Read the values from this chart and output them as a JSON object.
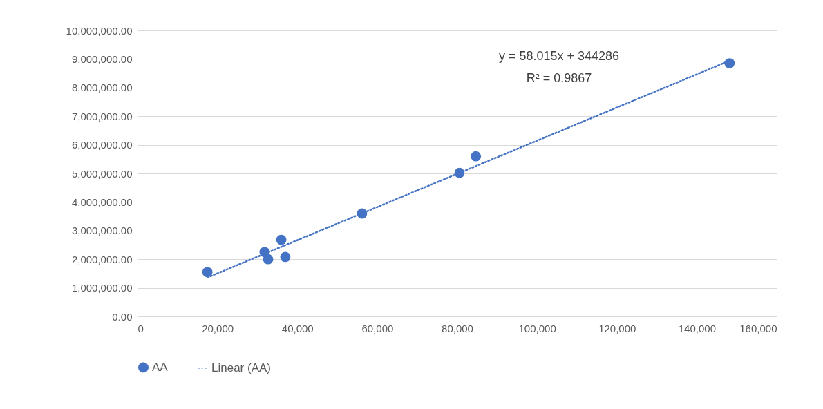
{
  "chart_data": {
    "type": "scatter",
    "annotations": [
      "y = 58.015x + 344286",
      "R² = 0.9867"
    ],
    "series": [
      {
        "name": "AA",
        "color": "#4472c4",
        "marker": "circle",
        "x": [
          17500,
          31800,
          32700,
          36000,
          37000,
          56200,
          80600,
          84700,
          148200
        ],
        "values": [
          1550000,
          2250000,
          2000000,
          2680000,
          2080000,
          3600000,
          5020000,
          5600000,
          8850000
        ]
      },
      {
        "name": "Linear (AA)",
        "type": "line",
        "color": "#4472c4",
        "line_style": "dotted",
        "x": [
          17500,
          148200
        ],
        "values": [
          1360000,
          8940000
        ]
      }
    ],
    "xlim": [
      0,
      160000
    ],
    "xticks": [
      0,
      {
        "value": 20000,
        "label": "20,000"
      },
      {
        "value": 40000,
        "label": "40,000"
      },
      {
        "value": 60000,
        "label": "60,000"
      },
      {
        "value": 80000,
        "label": "80,000"
      },
      {
        "value": 100000,
        "label": "100,000"
      },
      {
        "value": 120000,
        "label": "120,000"
      },
      {
        "value": 140000,
        "label": "140,000"
      },
      {
        "value": 160000,
        "label": "160,000"
      }
    ],
    "ylim": [
      0,
      10000000
    ],
    "yticks": [
      {
        "value": 0,
        "label": "0.00"
      },
      {
        "value": 1000000,
        "label": "1,000,000.00"
      },
      {
        "value": 2000000,
        "label": "2,000,000.00"
      },
      {
        "value": 3000000,
        "label": "3,000,000.00"
      },
      {
        "value": 4000000,
        "label": "4,000,000.00"
      },
      {
        "value": 5000000,
        "label": "5,000,000.00"
      },
      {
        "value": 6000000,
        "label": "6,000,000.00"
      },
      {
        "value": 7000000,
        "label": "7,000,000.00"
      },
      {
        "value": 8000000,
        "label": "8,000,000.00"
      },
      {
        "value": 9000000,
        "label": "9,000,000.00"
      },
      {
        "value": 10000000,
        "label": "10,000,000.00"
      }
    ],
    "grid": "y",
    "legend": "bottom"
  }
}
